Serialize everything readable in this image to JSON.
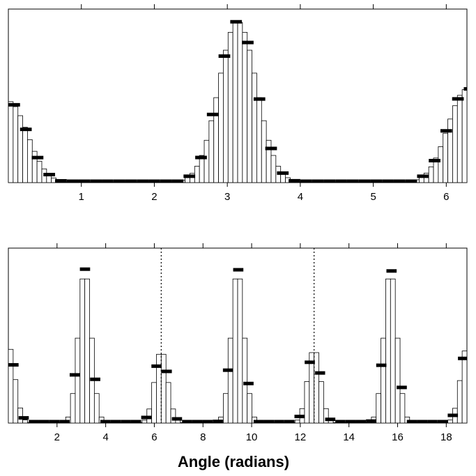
{
  "chart_data": [
    {
      "type": "bar",
      "subtype": "histogram",
      "title": "",
      "xlabel": "",
      "ylabel": "",
      "xlim": [
        0,
        6.2832
      ],
      "bin_width": 0.06545,
      "bin_start": 0,
      "ylim": [
        0,
        1
      ],
      "xticks": [
        1,
        2,
        3,
        4,
        5,
        6
      ],
      "xtick_labels": [
        "1",
        "2",
        "3",
        "4",
        "5",
        "6"
      ],
      "top_ticks": [
        1,
        2,
        3,
        4,
        5,
        6
      ],
      "grid": false,
      "legend": "none",
      "bar_fill": "#ffffff",
      "bar_stroke": "#000000",
      "mark_color": "#000000",
      "peaks": [
        {
          "center": 0,
          "amp": 0.47,
          "sigma": 0.26
        },
        {
          "center": 3.1416,
          "amp": 0.93,
          "sigma": 0.26
        },
        {
          "center": 6.2832,
          "amp": 0.54,
          "sigma": 0.26
        }
      ],
      "marker_width": 0.16,
      "dotted_lines": []
    },
    {
      "type": "bar",
      "subtype": "histogram",
      "title": "",
      "xlabel": "Angle (radians)",
      "ylabel": "",
      "xlim": [
        0,
        18.85
      ],
      "bin_width": 0.19635,
      "bin_start": 0,
      "ylim": [
        0,
        1
      ],
      "xticks": [
        2,
        4,
        6,
        8,
        10,
        12,
        14,
        16,
        18
      ],
      "xtick_labels": [
        "2",
        "4",
        "6",
        "8",
        "10",
        "12",
        "14",
        "16",
        "18"
      ],
      "top_ticks": [
        2,
        4,
        6,
        8,
        10,
        12,
        14,
        16,
        18
      ],
      "grid": false,
      "legend": "none",
      "bar_fill": "#ffffff",
      "bar_stroke": "#000000",
      "mark_color": "#000000",
      "peaks": [
        {
          "center": 0,
          "amp": 0.45,
          "sigma": 0.27
        },
        {
          "center": 3.1416,
          "amp": 0.88,
          "sigma": 0.27
        },
        {
          "center": 6.2832,
          "amp": 0.42,
          "sigma": 0.27
        },
        {
          "center": 9.4248,
          "amp": 0.88,
          "sigma": 0.27
        },
        {
          "center": 12.5664,
          "amp": 0.43,
          "sigma": 0.27
        },
        {
          "center": 15.708,
          "amp": 0.88,
          "sigma": 0.27
        },
        {
          "center": 18.8496,
          "amp": 0.44,
          "sigma": 0.27
        }
      ],
      "marker_width": 0.42,
      "dotted_lines": [
        6.2832,
        12.5664
      ]
    }
  ]
}
